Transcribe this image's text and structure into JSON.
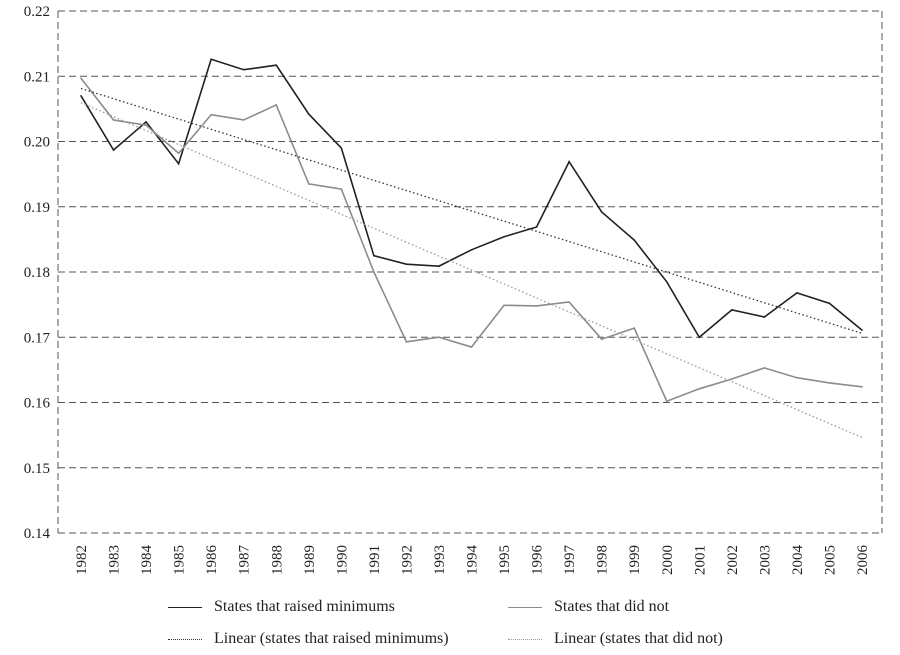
{
  "chart_data": {
    "type": "line",
    "title": "",
    "xlabel": "",
    "ylabel": "",
    "ylim": [
      0.14,
      0.22
    ],
    "yticks": [
      "0.14",
      "0.15",
      "0.16",
      "0.17",
      "0.18",
      "0.19",
      "0.20",
      "0.21",
      "0.22"
    ],
    "grid": true,
    "legend_placement": "bottom",
    "categories": [
      "1982",
      "1983",
      "1984",
      "1985",
      "1986",
      "1987",
      "1988",
      "1989",
      "1990",
      "1991",
      "1992",
      "1993",
      "1994",
      "1995",
      "1996",
      "1997",
      "1998",
      "1999",
      "2000",
      "2001",
      "2002",
      "2003",
      "2004",
      "2005",
      "2006"
    ],
    "series": [
      {
        "name": "States that raised minimums",
        "color": "#222222",
        "style": "solid",
        "values": [
          0.207,
          0.1987,
          0.203,
          0.1966,
          0.2126,
          0.211,
          0.2117,
          0.2042,
          0.199,
          0.1825,
          0.1812,
          0.1809,
          0.1834,
          0.1854,
          0.1869,
          0.1969,
          0.1892,
          0.1849,
          0.1785,
          0.17,
          0.1742,
          0.1731,
          0.1768,
          0.1752,
          0.1711
        ]
      },
      {
        "name": "States that did not",
        "color": "#8c8c8c",
        "style": "solid",
        "values": [
          0.2097,
          0.2033,
          0.2025,
          0.1982,
          0.2041,
          0.2033,
          0.2056,
          0.1935,
          0.1927,
          0.18,
          0.1693,
          0.17,
          0.1685,
          0.1749,
          0.1748,
          0.1754,
          0.1697,
          0.1714,
          0.1602,
          0.1621,
          0.1636,
          0.1653,
          0.1638,
          0.163,
          0.1624
        ]
      },
      {
        "name": "Linear (states that raised minimums)",
        "color": "#333333",
        "style": "dotted",
        "trend_of": 0
      },
      {
        "name": "Linear (states that did not)",
        "color": "#999999",
        "style": "dotted",
        "trend_of": 1
      }
    ]
  }
}
